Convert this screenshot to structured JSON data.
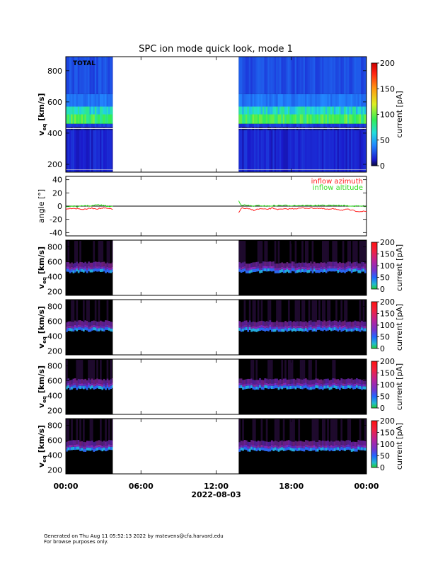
{
  "title": "SPC ion mode quick look, mode 1",
  "footer": {
    "line1": "Generated on Thu Aug 11 05:52:13 2022 by mstevens@cfa.harvard.edu",
    "line2": "For browse purposes only."
  },
  "colors": {
    "inflow_azimuth": "#ff2020",
    "inflow_altitude": "#33dd22",
    "zero_line": "#000000"
  },
  "chart_data": [
    {
      "type": "heatmap",
      "panel": "total",
      "annotation": "TOTAL",
      "ylabel": "v",
      "ylabel_sub": "eq",
      "ylabel_units": "[km/s]",
      "yticks": [
        200,
        400,
        600,
        800
      ],
      "ylim": [
        150,
        890
      ],
      "xlim_hours": [
        0,
        24
      ],
      "data_gap_hours": [
        3.75,
        13.8
      ],
      "colorbar": {
        "label": "current [pA]",
        "ticks": [
          0,
          50,
          100,
          150,
          200
        ],
        "range": [
          0,
          200
        ]
      },
      "bands": [
        {
          "vmin": 150,
          "vmax": 420,
          "current": 15
        },
        {
          "vmin": 420,
          "vmax": 440,
          "current": 5
        },
        {
          "vmin": 440,
          "vmax": 460,
          "current": 20
        },
        {
          "vmin": 460,
          "vmax": 520,
          "current": 90
        },
        {
          "vmin": 520,
          "vmax": 570,
          "current": 65
        },
        {
          "vmin": 570,
          "vmax": 650,
          "current": 35
        },
        {
          "vmin": 650,
          "vmax": 890,
          "current": 25
        }
      ]
    },
    {
      "type": "line",
      "panel": "angle",
      "ylabel": "angle [°]",
      "yticks": [
        -40,
        -20,
        0,
        20,
        40
      ],
      "ylim": [
        -45,
        45
      ],
      "xlim_hours": [
        0,
        24
      ],
      "series": [
        {
          "name": "inflow azimuth",
          "color": "#ff2020",
          "x": [
            0,
            0.5,
            1,
            1.5,
            2,
            2.5,
            3,
            3.5,
            3.75,
            13.8,
            14,
            14.5,
            15,
            15.5,
            16,
            16.5,
            17,
            18,
            19,
            20,
            21,
            21.5,
            22,
            22.5,
            23,
            23.5,
            24
          ],
          "y": [
            -4,
            -3,
            -4,
            -5,
            -3,
            -4,
            -3,
            -4,
            -5,
            -10,
            -3,
            -4,
            -6,
            -4,
            -5,
            -3,
            -5,
            -4,
            -3,
            -3,
            -5,
            -4,
            -6,
            -5,
            -7,
            -8,
            -8
          ]
        },
        {
          "name": "inflow altitude",
          "color": "#33dd22",
          "x": [
            0,
            0.5,
            1,
            1.5,
            2,
            2.5,
            3,
            3.5,
            3.75,
            13.8,
            14,
            14.5,
            15,
            15.5,
            16,
            17,
            18,
            19,
            20,
            21,
            22,
            23,
            24
          ],
          "y": [
            -1,
            0,
            -1,
            1,
            0,
            2,
            1,
            -1,
            0,
            8,
            2,
            1,
            0,
            1,
            0,
            1,
            1,
            1,
            1,
            1,
            1,
            0,
            0
          ]
        }
      ]
    },
    {
      "type": "heatmap",
      "panel": "cup1",
      "ylabel": "v",
      "ylabel_sub": "eq",
      "ylabel_units": "[km/s]",
      "yticks": [
        200,
        400,
        600,
        800
      ],
      "ylim": [
        150,
        890
      ],
      "xlim_hours": [
        0,
        24
      ],
      "data_gap_hours": [
        3.75,
        13.8
      ],
      "colorbar": {
        "label": "current [pA]",
        "ticks": [
          0,
          50,
          100,
          150,
          200
        ],
        "range": [
          0,
          200
        ]
      }
    },
    {
      "type": "heatmap",
      "panel": "cup2",
      "ylabel": "v",
      "ylabel_sub": "eq",
      "ylabel_units": "[km/s]",
      "yticks": [
        200,
        400,
        600,
        800
      ],
      "ylim": [
        150,
        890
      ],
      "xlim_hours": [
        0,
        24
      ],
      "data_gap_hours": [
        3.75,
        13.8
      ],
      "colorbar": {
        "label": "current [pA]",
        "ticks": [
          0,
          50,
          100,
          150,
          200
        ],
        "range": [
          0,
          200
        ]
      }
    },
    {
      "type": "heatmap",
      "panel": "cup3",
      "ylabel": "v",
      "ylabel_sub": "eq",
      "ylabel_units": "[km/s]",
      "yticks": [
        200,
        400,
        600,
        800
      ],
      "ylim": [
        150,
        890
      ],
      "xlim_hours": [
        0,
        24
      ],
      "data_gap_hours": [
        3.75,
        13.8
      ],
      "colorbar": {
        "label": "current [pA]",
        "ticks": [
          0,
          50,
          100,
          150,
          200
        ],
        "range": [
          0,
          200
        ]
      }
    },
    {
      "type": "heatmap",
      "panel": "cup4",
      "ylabel": "v",
      "ylabel_sub": "eq",
      "ylabel_units": "[km/s]",
      "yticks": [
        200,
        400,
        600,
        800
      ],
      "ylim": [
        150,
        890
      ],
      "xlim_hours": [
        0,
        24
      ],
      "data_gap_hours": [
        3.75,
        13.8
      ],
      "colorbar": {
        "label": "current [pA]",
        "ticks": [
          0,
          50,
          100,
          150,
          200
        ],
        "range": [
          0,
          200
        ]
      }
    }
  ],
  "xaxis": {
    "tick_labels": [
      "00:00",
      "06:00",
      "12:00",
      "18:00",
      "00:00"
    ],
    "tick_hours": [
      0,
      6,
      12,
      18,
      24
    ],
    "date_label": "2022-08-03"
  }
}
